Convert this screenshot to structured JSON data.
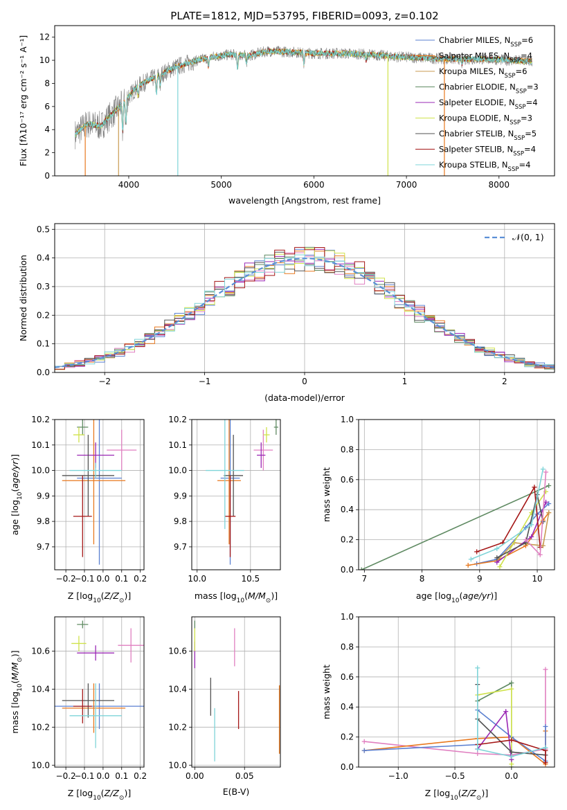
{
  "colors": {
    "chabrier_miles": "#5a7fd0",
    "salpeter_miles": "#e8781e",
    "kroupa_miles": "#c89a50",
    "chabrier_elodie": "#5f8a62",
    "salpeter_elodie": "#9a27b4",
    "kroupa_elodie": "#cfe24a",
    "chabrier_stelib": "#525252",
    "salpeter_stelib": "#a41616",
    "kroupa_stelib": "#7ed4d8",
    "kroupa_pink": "#e07fc0"
  },
  "chart_data": [
    {
      "id": "spectrum",
      "type": "line",
      "title": "PLATE=1812, MJD=53795, FIBERID=0093, z=0.102",
      "xlabel": "wavelength [Angstrom, rest frame]",
      "ylabel": "Flux [fλ10⁻¹⁷ erg cm⁻² s⁻¹ A⁻¹]",
      "xlim": [
        3200,
        8600
      ],
      "ylim": [
        0,
        13
      ],
      "xticks": [
        4000,
        5000,
        6000,
        7000,
        8000
      ],
      "yticks": [
        0,
        2,
        4,
        6,
        8,
        10,
        12
      ],
      "grid": false,
      "legend_position": "top-right",
      "legend": [
        {
          "label": "Chabrier MILES, N",
          "sub": "SSP",
          "suffix": "=6",
          "color": "chabrier_miles"
        },
        {
          "label": "Salpeter MILES, N",
          "sub": "SSP",
          "suffix": "=4",
          "color": "salpeter_miles"
        },
        {
          "label": "Kroupa MILES, N",
          "sub": "SSP",
          "suffix": "=6",
          "color": "kroupa_miles"
        },
        {
          "label": "Chabrier ELODIE, N",
          "sub": "SSP",
          "suffix": "=3",
          "color": "chabrier_elodie"
        },
        {
          "label": "Salpeter ELODIE, N",
          "sub": "SSP",
          "suffix": "=4",
          "color": "salpeter_elodie"
        },
        {
          "label": "Kroupa ELODIE, N",
          "sub": "SSP",
          "suffix": "=3",
          "color": "kroupa_elodie"
        },
        {
          "label": "Chabrier STELIB, N",
          "sub": "SSP",
          "suffix": "=5",
          "color": "chabrier_stelib"
        },
        {
          "label": "Salpeter STELIB, N",
          "sub": "SSP",
          "suffix": "=4",
          "color": "salpeter_stelib"
        },
        {
          "label": "Kroupa STELIB, N",
          "sub": "SSP",
          "suffix": "=4",
          "color": "kroupa_stelib"
        }
      ],
      "continuum": [
        [
          3420,
          3.6
        ],
        [
          3550,
          4.5
        ],
        [
          3700,
          4.3
        ],
        [
          3800,
          5.2
        ],
        [
          3950,
          6.4
        ],
        [
          4100,
          7.8
        ],
        [
          4300,
          8.6
        ],
        [
          4500,
          9.4
        ],
        [
          4700,
          9.9
        ],
        [
          4900,
          10.3
        ],
        [
          5100,
          10.5
        ],
        [
          5300,
          10.4
        ],
        [
          5500,
          10.8
        ],
        [
          5800,
          10.7
        ],
        [
          6000,
          10.6
        ],
        [
          6300,
          10.6
        ],
        [
          6600,
          10.5
        ],
        [
          6900,
          10.3
        ],
        [
          7200,
          10.2
        ],
        [
          7500,
          10.1
        ],
        [
          7900,
          10.1
        ],
        [
          8100,
          10.0
        ],
        [
          8350,
          9.9
        ]
      ]
    },
    {
      "id": "residuals",
      "type": "step",
      "xlabel": "(data-model)/error",
      "ylabel": "Normed distribution",
      "xlim": [
        -2.5,
        2.5
      ],
      "ylim": [
        0,
        0.52
      ],
      "xticks": [
        -2,
        -1,
        0,
        1,
        2
      ],
      "yticks": [
        0.0,
        0.1,
        0.2,
        0.3,
        0.4,
        0.5
      ],
      "grid": true,
      "legend_position": "top-right",
      "legend_label": "𝒩(0, 1)",
      "gaussian": {
        "mean": 0,
        "sigma": 1,
        "color": "#5b8fd6"
      }
    },
    {
      "id": "age-vs-Z",
      "type": "errorbar",
      "xlabel": "Z [log₁₀(Z/Z⊙)]",
      "ylabel": "age  [log₁₀(age/yr)]",
      "xlim": [
        -0.26,
        0.22
      ],
      "ylim": [
        9.61,
        10.2
      ],
      "xticks": [
        -0.2,
        -0.1,
        0.0,
        0.1,
        0.2
      ],
      "yticks": [
        9.7,
        9.8,
        9.9,
        10.0,
        10.1,
        10.2
      ],
      "grid": true,
      "points": [
        {
          "x": -0.02,
          "y": 9.97,
          "xerr": 0.12,
          "yerr": 0.34,
          "color": "chabrier_miles"
        },
        {
          "x": -0.05,
          "y": 9.96,
          "xerr": 0.17,
          "yerr": 0.25,
          "color": "salpeter_miles"
        },
        {
          "x": 0.1,
          "y": 10.08,
          "xerr": 0.08,
          "yerr": 0.08,
          "color": "kroupa_pink"
        },
        {
          "x": -0.11,
          "y": 10.17,
          "xerr": 0.03,
          "yerr": 0.03,
          "color": "chabrier_elodie"
        },
        {
          "x": -0.04,
          "y": 10.06,
          "xerr": 0.1,
          "yerr": 0.05,
          "color": "salpeter_elodie"
        },
        {
          "x": -0.13,
          "y": 10.14,
          "xerr": 0.03,
          "yerr": 0.03,
          "color": "kroupa_elodie"
        },
        {
          "x": -0.08,
          "y": 9.98,
          "xerr": 0.14,
          "yerr": 0.16,
          "color": "chabrier_stelib"
        },
        {
          "x": -0.11,
          "y": 9.82,
          "xerr": 0.05,
          "yerr": 0.16,
          "color": "salpeter_stelib"
        },
        {
          "x": -0.04,
          "y": 10.0,
          "xerr": 0.14,
          "yerr": 0.03,
          "color": "kroupa_stelib"
        }
      ]
    },
    {
      "id": "age-vs-mass",
      "type": "errorbar",
      "xlabel": "mass [log₁₀(M/M⊙)]",
      "ylabel": "",
      "xlim": [
        9.95,
        10.78
      ],
      "ylim": [
        9.61,
        10.2
      ],
      "xticks": [
        10.0,
        10.5
      ],
      "yticks": [
        9.7,
        9.8,
        9.9,
        10.0,
        10.1,
        10.2
      ],
      "grid": true,
      "points": [
        {
          "x": 10.31,
          "y": 9.97,
          "xerr": 0.09,
          "yerr": 0.34,
          "color": "chabrier_miles"
        },
        {
          "x": 10.3,
          "y": 9.96,
          "xerr": 0.11,
          "yerr": 0.25,
          "color": "salpeter_miles"
        },
        {
          "x": 10.62,
          "y": 10.08,
          "xerr": 0.09,
          "yerr": 0.08,
          "color": "kroupa_pink"
        },
        {
          "x": 10.74,
          "y": 10.17,
          "xerr": 0.02,
          "yerr": 0.03,
          "color": "chabrier_elodie"
        },
        {
          "x": 10.6,
          "y": 10.06,
          "xerr": 0.04,
          "yerr": 0.05,
          "color": "salpeter_elodie"
        },
        {
          "x": 10.65,
          "y": 10.14,
          "xerr": 0.03,
          "yerr": 0.03,
          "color": "kroupa_elodie"
        },
        {
          "x": 10.34,
          "y": 9.98,
          "xerr": 0.09,
          "yerr": 0.16,
          "color": "chabrier_stelib"
        },
        {
          "x": 10.31,
          "y": 9.82,
          "xerr": 0.05,
          "yerr": 0.16,
          "color": "salpeter_stelib"
        },
        {
          "x": 10.26,
          "y": 10.0,
          "xerr": 0.18,
          "yerr": 0.23,
          "color": "kroupa_stelib"
        }
      ]
    },
    {
      "id": "massweight-vs-age",
      "type": "line",
      "xlabel": "age  [log₁₀(age/yr)]",
      "ylabel": "mass weight",
      "xlim": [
        6.9,
        10.3
      ],
      "ylim": [
        0,
        1.0
      ],
      "xticks": [
        7,
        8,
        9,
        10
      ],
      "yticks": [
        0.0,
        0.2,
        0.4,
        0.6,
        0.8,
        1.0
      ],
      "grid": true,
      "series": [
        {
          "color": "chabrier_elodie",
          "x": [
            6.95,
            10.2
          ],
          "y": [
            0.0,
            0.56
          ]
        },
        {
          "color": "chabrier_miles",
          "x": [
            8.95,
            9.3,
            9.8,
            10.0,
            10.2
          ],
          "y": [
            0.04,
            0.07,
            0.28,
            0.37,
            0.44
          ]
        },
        {
          "color": "salpeter_miles",
          "x": [
            8.8,
            9.3,
            9.8,
            10.1,
            10.2
          ],
          "y": [
            0.03,
            0.06,
            0.16,
            0.33,
            0.38
          ]
        },
        {
          "color": "kroupa_miles",
          "x": [
            9.3,
            9.6,
            10.1,
            10.2
          ],
          "y": [
            0.06,
            0.18,
            0.16,
            0.38
          ]
        },
        {
          "color": "salpeter_elodie",
          "x": [
            9.3,
            9.9,
            10.15
          ],
          "y": [
            0.05,
            0.22,
            0.45
          ]
        },
        {
          "color": "kroupa_elodie",
          "x": [
            9.35,
            9.9,
            10.15
          ],
          "y": [
            0.02,
            0.38,
            0.52
          ]
        },
        {
          "color": "chabrier_stelib",
          "x": [
            9.3,
            9.8,
            10.0,
            10.1
          ],
          "y": [
            0.08,
            0.18,
            0.5,
            0.32
          ]
        },
        {
          "color": "salpeter_stelib",
          "x": [
            8.95,
            9.4,
            9.95,
            10.05
          ],
          "y": [
            0.12,
            0.18,
            0.55,
            0.15
          ]
        },
        {
          "color": "kroupa_stelib",
          "x": [
            8.85,
            9.3,
            9.9,
            10.1
          ],
          "y": [
            0.07,
            0.14,
            0.3,
            0.67
          ]
        },
        {
          "color": "kroupa_pink",
          "x": [
            9.8,
            10.05,
            10.15
          ],
          "y": [
            0.2,
            0.1,
            0.65
          ]
        }
      ]
    },
    {
      "id": "mass-vs-Z",
      "type": "errorbar",
      "xlabel": "Z [log₁₀(Z/Z⊙)]",
      "ylabel": "mass [log₁₀(M/M⊙)]",
      "xlim": [
        -0.26,
        0.22
      ],
      "ylim": [
        9.99,
        10.78
      ],
      "xticks": [
        -0.2,
        -0.1,
        0.0,
        0.1,
        0.2
      ],
      "yticks": [
        10.0,
        10.2,
        10.4,
        10.6
      ],
      "grid": true,
      "points": [
        {
          "x": -0.02,
          "y": 10.31,
          "xerr": 0.24,
          "yerr": 0.12,
          "color": "chabrier_miles"
        },
        {
          "x": -0.05,
          "y": 10.3,
          "xerr": 0.17,
          "yerr": 0.13,
          "color": "salpeter_miles"
        },
        {
          "x": 0.15,
          "y": 10.63,
          "xerr": 0.07,
          "yerr": 0.09,
          "color": "kroupa_pink"
        },
        {
          "x": -0.11,
          "y": 10.74,
          "xerr": 0.03,
          "yerr": 0.02,
          "color": "chabrier_elodie"
        },
        {
          "x": -0.04,
          "y": 10.59,
          "xerr": 0.1,
          "yerr": 0.04,
          "color": "salpeter_elodie"
        },
        {
          "x": -0.13,
          "y": 10.64,
          "xerr": 0.04,
          "yerr": 0.04,
          "color": "kroupa_elodie"
        },
        {
          "x": -0.08,
          "y": 10.34,
          "xerr": 0.14,
          "yerr": 0.09,
          "color": "chabrier_stelib"
        },
        {
          "x": -0.11,
          "y": 10.31,
          "xerr": 0.05,
          "yerr": 0.09,
          "color": "salpeter_stelib"
        },
        {
          "x": -0.04,
          "y": 10.26,
          "xerr": 0.14,
          "yerr": 0.17,
          "color": "kroupa_stelib"
        }
      ]
    },
    {
      "id": "mass-vs-EBV",
      "type": "errorbar",
      "xlabel": "E(B-V)",
      "ylabel": "",
      "xlim": [
        -0.003,
        0.086
      ],
      "ylim": [
        9.99,
        10.78
      ],
      "xticks": [
        0.0,
        0.05
      ],
      "yticks": [
        10.0,
        10.2,
        10.4,
        10.6
      ],
      "grid": true,
      "points": [
        {
          "x": 0.0,
          "y": 10.58,
          "xerr": 0,
          "yerr": 0.07,
          "color": "salpeter_elodie"
        },
        {
          "x": 0.0,
          "y": 10.66,
          "xerr": 0,
          "yerr": 0.06,
          "color": "kroupa_elodie"
        },
        {
          "x": 0.0,
          "y": 10.74,
          "xerr": 0,
          "yerr": 0.02,
          "color": "chabrier_elodie"
        },
        {
          "x": 0.016,
          "y": 10.36,
          "xerr": 0,
          "yerr": 0.1,
          "color": "chabrier_stelib"
        },
        {
          "x": 0.02,
          "y": 10.16,
          "xerr": 0,
          "yerr": 0.14,
          "color": "kroupa_stelib"
        },
        {
          "x": 0.04,
          "y": 10.62,
          "xerr": 0,
          "yerr": 0.1,
          "color": "kroupa_pink"
        },
        {
          "x": 0.044,
          "y": 10.29,
          "xerr": 0,
          "yerr": 0.1,
          "color": "salpeter_stelib"
        },
        {
          "x": 0.085,
          "y": 10.24,
          "xerr": 0,
          "yerr": 0.18,
          "color": "salpeter_miles"
        }
      ]
    },
    {
      "id": "massweight-vs-Z",
      "type": "line",
      "xlabel": "Z [log₁₀(Z/Z⊙)]",
      "ylabel": "mass weight",
      "xlim": [
        -1.35,
        0.38
      ],
      "ylim": [
        0,
        1.0
      ],
      "xticks": [
        -1.0,
        -0.5,
        0.0
      ],
      "yticks": [
        0.0,
        0.2,
        0.4,
        0.6,
        0.8,
        1.0
      ],
      "grid": true,
      "series": [
        {
          "color": "kroupa_pink",
          "x": [
            -1.3,
            -0.3,
            0.0,
            0.3,
            0.3
          ],
          "y": [
            0.17,
            0.09,
            0.08,
            0.12,
            0.65
          ]
        },
        {
          "color": "salpeter_miles",
          "x": [
            -1.3,
            -0.3,
            0.0,
            0.3,
            0.3
          ],
          "y": [
            0.11,
            0.19,
            0.2,
            0.02,
            0.24
          ]
        },
        {
          "color": "chabrier_miles",
          "x": [
            -1.3,
            -0.3,
            -0.3,
            0.0,
            0.3,
            0.3
          ],
          "y": [
            0.11,
            0.15,
            0.38,
            0.2,
            0.04,
            0.27
          ]
        },
        {
          "color": "chabrier_elodie",
          "x": [
            -0.3,
            0.0,
            0.0
          ],
          "y": [
            0.44,
            0.56,
            0.0
          ]
        },
        {
          "color": "kroupa_elodie",
          "x": [
            -0.3,
            0.0,
            0.0
          ],
          "y": [
            0.48,
            0.52,
            0.02
          ]
        },
        {
          "color": "salpeter_elodie",
          "x": [
            -0.3,
            -0.05,
            0.0
          ],
          "y": [
            0.12,
            0.37,
            0.05
          ]
        },
        {
          "color": "chabrier_stelib",
          "x": [
            -0.3,
            -0.3,
            0.0,
            0.3
          ],
          "y": [
            0.55,
            0.32,
            0.1,
            0.08
          ]
        },
        {
          "color": "salpeter_stelib",
          "x": [
            -0.3,
            0.0,
            0.3,
            0.3
          ],
          "y": [
            0.15,
            0.18,
            0.11,
            0.03
          ]
        },
        {
          "color": "kroupa_stelib",
          "x": [
            -0.3,
            -0.3,
            0.0,
            0.3
          ],
          "y": [
            0.66,
            0.12,
            0.07,
            0.13
          ]
        }
      ]
    }
  ]
}
